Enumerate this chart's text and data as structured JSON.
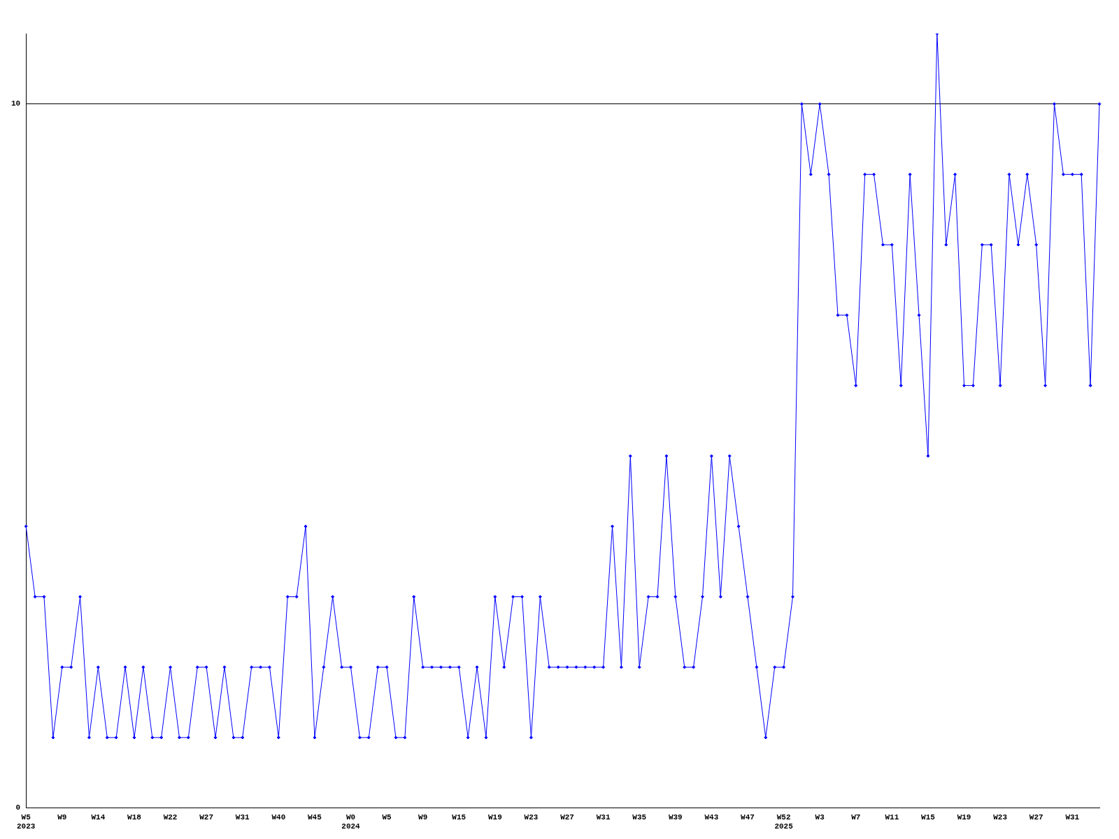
{
  "chart_data": {
    "type": "line",
    "categories": [
      "W5\n2023",
      null,
      null,
      null,
      "W9",
      null,
      null,
      null,
      "W14",
      null,
      null,
      null,
      "W18",
      null,
      null,
      null,
      "W22",
      null,
      null,
      null,
      "W27",
      null,
      null,
      null,
      "W31",
      null,
      null,
      null,
      "W40",
      null,
      null,
      null,
      "W45",
      null,
      null,
      null,
      "W0\n2024",
      null,
      null,
      null,
      "W5",
      null,
      null,
      null,
      "W9",
      null,
      null,
      null,
      "W15",
      null,
      null,
      null,
      "W19",
      null,
      null,
      null,
      "W23",
      null,
      null,
      null,
      "W27",
      null,
      null,
      null,
      "W31",
      null,
      null,
      null,
      "W35",
      null,
      null,
      null,
      "W39",
      null,
      null,
      null,
      "W43",
      null,
      null,
      null,
      "W47",
      null,
      null,
      null,
      "W52\n2025",
      null,
      null,
      null,
      "W3",
      null,
      null,
      null,
      "W7",
      null,
      null,
      null,
      "W11",
      null,
      null,
      null,
      "W15",
      null,
      null,
      null,
      "W19",
      null,
      null,
      null,
      "W23",
      null,
      null,
      null,
      "W27",
      null,
      null,
      null,
      "W31",
      null,
      null,
      null
    ],
    "series": [
      {
        "color": "#0000ff",
        "values": [
          4,
          3,
          3,
          1,
          2,
          2,
          3,
          1,
          2,
          1,
          1,
          2,
          1,
          2,
          1,
          1,
          2,
          1,
          1,
          2,
          2,
          1,
          2,
          1,
          1,
          2,
          2,
          2,
          1,
          3,
          3,
          4,
          1,
          2,
          3,
          2,
          2,
          1,
          1,
          2,
          2,
          1,
          1,
          3,
          2,
          2,
          2,
          2,
          2,
          1,
          2,
          1,
          3,
          2,
          3,
          3,
          1,
          3,
          2,
          2,
          2,
          2,
          2,
          2,
          2,
          4,
          2,
          5,
          2,
          3,
          3,
          5,
          3,
          2,
          2,
          3,
          5,
          3,
          5,
          4,
          3,
          2,
          1,
          2,
          2,
          3,
          10,
          9,
          10,
          9,
          7,
          7,
          6,
          9,
          9,
          8,
          8,
          6,
          9,
          7,
          5,
          11,
          8,
          9,
          6,
          6,
          8,
          8,
          6,
          9,
          8,
          9,
          8,
          6,
          10,
          9,
          9,
          9,
          6,
          10
        ]
      }
    ],
    "ylim": [
      0,
      11
    ],
    "yticks": [
      0,
      10
    ],
    "grid": "y",
    "marker": "diamond",
    "line_style": "solid",
    "legend": false
  }
}
